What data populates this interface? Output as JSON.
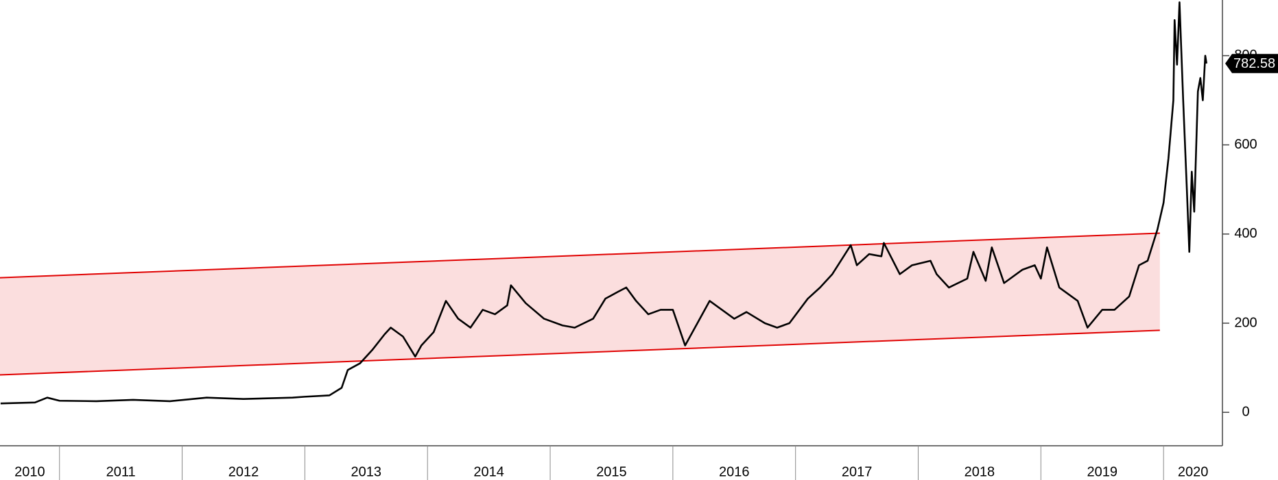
{
  "chart_data": {
    "type": "line",
    "color": "#000000",
    "x": [
      2010.52,
      2010.8,
      2010.9,
      2011.0,
      2011.3,
      2011.6,
      2011.9,
      2012.2,
      2012.5,
      2012.9,
      2013.0,
      2013.2,
      2013.3,
      2013.35,
      2013.45,
      2013.55,
      2013.65,
      2013.7,
      2013.8,
      2013.9,
      2013.95,
      2014.05,
      2014.15,
      2014.25,
      2014.35,
      2014.45,
      2014.55,
      2014.65,
      2014.68,
      2014.8,
      2014.95,
      2015.1,
      2015.2,
      2015.35,
      2015.45,
      2015.55,
      2015.62,
      2015.7,
      2015.8,
      2015.9,
      2016.0,
      2016.1,
      2016.2,
      2016.3,
      2016.4,
      2016.5,
      2016.6,
      2016.75,
      2016.85,
      2016.95,
      2017.1,
      2017.2,
      2017.3,
      2017.45,
      2017.5,
      2017.6,
      2017.7,
      2017.72,
      2017.85,
      2017.95,
      2018.1,
      2018.15,
      2018.25,
      2018.4,
      2018.45,
      2018.55,
      2018.6,
      2018.7,
      2018.85,
      2018.95,
      2019.0,
      2019.05,
      2019.15,
      2019.3,
      2019.38,
      2019.5,
      2019.6,
      2019.72,
      2019.8,
      2019.87,
      2019.95,
      2020.0,
      2020.04,
      2020.08,
      2020.09,
      2020.11,
      2020.13,
      2020.16,
      2020.19,
      2020.21,
      2020.23,
      2020.25,
      2020.28,
      2020.3,
      2020.32,
      2020.34,
      2020.35
    ],
    "values": [
      20,
      22,
      33,
      26,
      25,
      28,
      25,
      33,
      30,
      33,
      35,
      38,
      55,
      95,
      110,
      140,
      175,
      190,
      170,
      125,
      150,
      180,
      250,
      210,
      190,
      230,
      220,
      240,
      285,
      245,
      210,
      195,
      190,
      210,
      255,
      270,
      280,
      250,
      220,
      230,
      230,
      150,
      200,
      250,
      230,
      210,
      225,
      200,
      190,
      200,
      255,
      280,
      310,
      375,
      330,
      355,
      350,
      380,
      310,
      330,
      340,
      310,
      280,
      300,
      360,
      295,
      370,
      290,
      320,
      330,
      300,
      370,
      280,
      250,
      190,
      230,
      230,
      260,
      330,
      340,
      410,
      470,
      570,
      700,
      880,
      780,
      920,
      700,
      500,
      360,
      540,
      450,
      720,
      750,
      700,
      800,
      782.58
    ],
    "channel": {
      "x": [
        2010.515,
        2019.97
      ],
      "upper": [
        302,
        402
      ],
      "lower": [
        84,
        184
      ],
      "color": "#e00000"
    },
    "xlim": [
      2010.515,
      2020.48
    ],
    "xticks": [
      2010,
      2011,
      2012,
      2013,
      2014,
      2015,
      2016,
      2017,
      2018,
      2019,
      2020
    ],
    "ylim": [
      -75,
      925
    ],
    "yticks": [
      0,
      200,
      400,
      600,
      800
    ]
  }
}
